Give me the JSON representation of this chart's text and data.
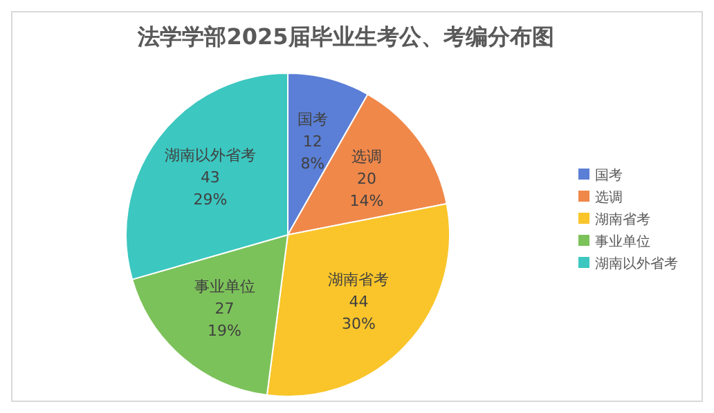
{
  "chart_data": {
    "type": "pie",
    "title": "法学学部2025届毕业生考公、考编分布图",
    "categories": [
      "国考",
      "选调",
      "湖南省考",
      "事业单位",
      "湖南以外省考"
    ],
    "values": [
      12,
      20,
      44,
      27,
      43
    ],
    "colors": [
      "#5b7fd6",
      "#f0884a",
      "#f9c52a",
      "#7cc25a",
      "#3cc7c0"
    ],
    "value_labels": [
      "12\n8%",
      "20\n14%",
      "44\n30%",
      "27\n19%",
      "43\n29%"
    ],
    "legend": "right"
  }
}
